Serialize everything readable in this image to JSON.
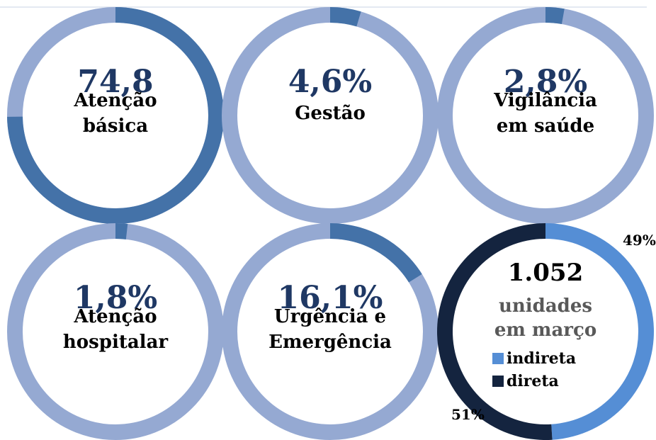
{
  "chart_data": [
    {
      "type": "donut",
      "title": "Atenção básica",
      "values": [
        74.8
      ],
      "value_labels": [
        "74,8"
      ],
      "color": "#4472a8",
      "track_color": "#95a9d2"
    },
    {
      "type": "donut",
      "title": "Gestão",
      "values": [
        4.6
      ],
      "value_labels": [
        "4,6%"
      ],
      "color": "#4472a8",
      "track_color": "#95a9d2"
    },
    {
      "type": "donut",
      "title": "Vigilância em saúde",
      "values": [
        2.8
      ],
      "value_labels": [
        "2,8%"
      ],
      "color": "#4472a8",
      "track_color": "#95a9d2"
    },
    {
      "type": "donut",
      "title": "Atenção hospitalar",
      "values": [
        1.8
      ],
      "value_labels": [
        "1,8%"
      ],
      "color": "#4472a8",
      "track_color": "#95a9d2"
    },
    {
      "type": "donut",
      "title": "Urgência e Emergência",
      "values": [
        16.1
      ],
      "value_labels": [
        "16,1%"
      ],
      "color": "#4472a8",
      "track_color": "#95a9d2"
    },
    {
      "type": "pie",
      "title": "1.052",
      "subtitle": "unidades em março",
      "categories": [
        "indireta",
        "direta"
      ],
      "values": [
        49,
        51
      ],
      "value_labels": [
        "49%",
        "51%"
      ],
      "colors": [
        "#558ed5",
        "#14243f"
      ]
    }
  ]
}
